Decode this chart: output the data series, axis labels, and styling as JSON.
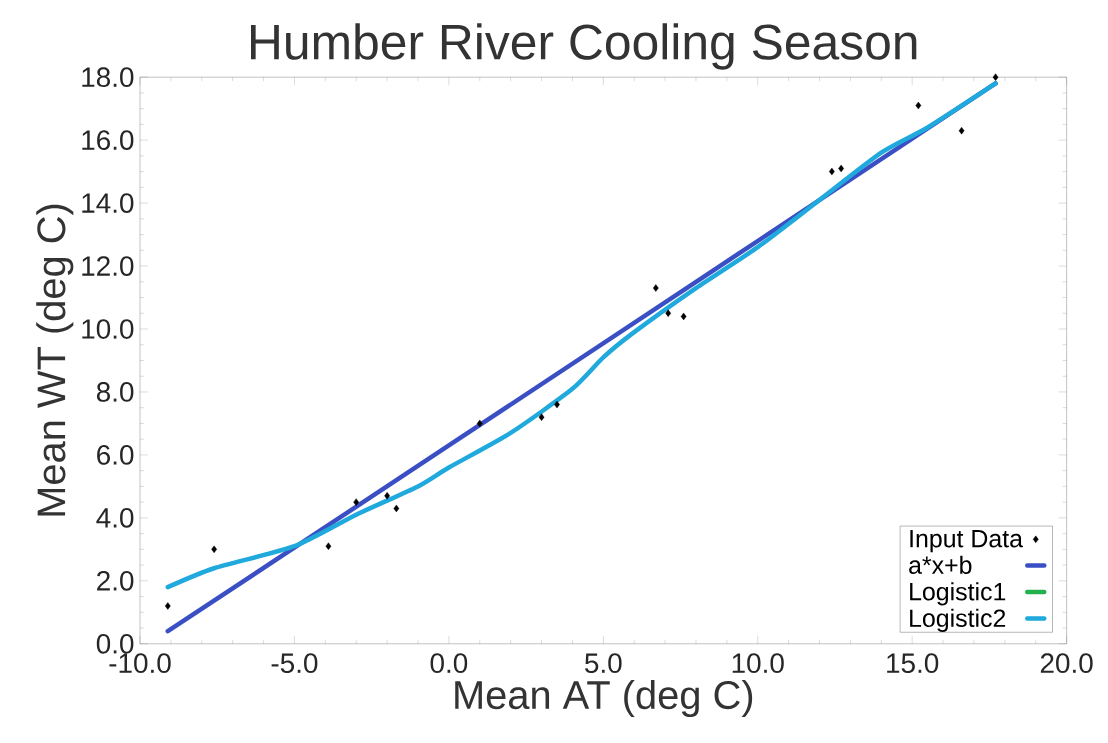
{
  "chart_data": {
    "type": "scatter",
    "title": "Humber River Cooling Season",
    "xlabel": "Mean AT (deg C)",
    "ylabel": "Mean WT (deg C)",
    "xlim": [
      -10,
      20
    ],
    "ylim": [
      0,
      18
    ],
    "xticks": [
      {
        "value": -10,
        "label": "-10.0"
      },
      {
        "value": -5,
        "label": "-5.0"
      },
      {
        "value": 0,
        "label": "0.0"
      },
      {
        "value": 5,
        "label": "5.0"
      },
      {
        "value": 10,
        "label": "10.0"
      },
      {
        "value": 15,
        "label": "15.0"
      },
      {
        "value": 20,
        "label": "20.0"
      }
    ],
    "yticks": [
      {
        "value": 0,
        "label": "0.0"
      },
      {
        "value": 2,
        "label": "2.0"
      },
      {
        "value": 4,
        "label": "4.0"
      },
      {
        "value": 6,
        "label": "6.0"
      },
      {
        "value": 8,
        "label": "8.0"
      },
      {
        "value": 10,
        "label": "10.0"
      },
      {
        "value": 12,
        "label": "12.0"
      },
      {
        "value": 14,
        "label": "14.0"
      },
      {
        "value": 16,
        "label": "16.0"
      },
      {
        "value": 18,
        "label": "18.0"
      }
    ],
    "grid": false,
    "legend": "bottom right",
    "series": [
      {
        "name": "Input Data",
        "marker": "diamond",
        "color": "#000000",
        "x": [
          -9.1,
          -7.6,
          -3.9,
          -3.0,
          -2.0,
          -1.7,
          1.0,
          3.0,
          3.5,
          6.7,
          7.1,
          7.6,
          12.4,
          12.7,
          15.2,
          16.6,
          17.7
        ],
        "values": [
          1.2,
          3.0,
          3.1,
          4.5,
          4.7,
          4.3,
          7.0,
          7.2,
          7.6,
          11.3,
          10.5,
          10.4,
          15.0,
          15.1,
          17.1,
          16.3,
          18.0
        ]
      },
      {
        "name": "a*x+b",
        "type": "line",
        "line_style": "solid",
        "color": "#3b4fc4",
        "x": [
          -9.1,
          0.0,
          17.7
        ],
        "values": [
          0.4,
          6.3,
          17.8
        ]
      },
      {
        "name": "Logistic1",
        "type": "line",
        "line_style": "solid",
        "color": "#22b14c"
      },
      {
        "name": "Logistic2",
        "type": "line",
        "line_style": "solid",
        "color": "#1fa9dc",
        "x": [
          -9.1,
          -7.6,
          -5.0,
          -3.0,
          -1.0,
          0.0,
          2.0,
          4.0,
          5.0,
          6.0,
          8.0,
          10.0,
          12.0,
          14.0,
          15.5,
          17.7
        ],
        "values": [
          1.8,
          2.4,
          3.1,
          4.1,
          5.0,
          5.6,
          6.7,
          8.1,
          9.1,
          9.9,
          11.3,
          12.6,
          14.1,
          15.6,
          16.4,
          17.8
        ]
      }
    ]
  }
}
